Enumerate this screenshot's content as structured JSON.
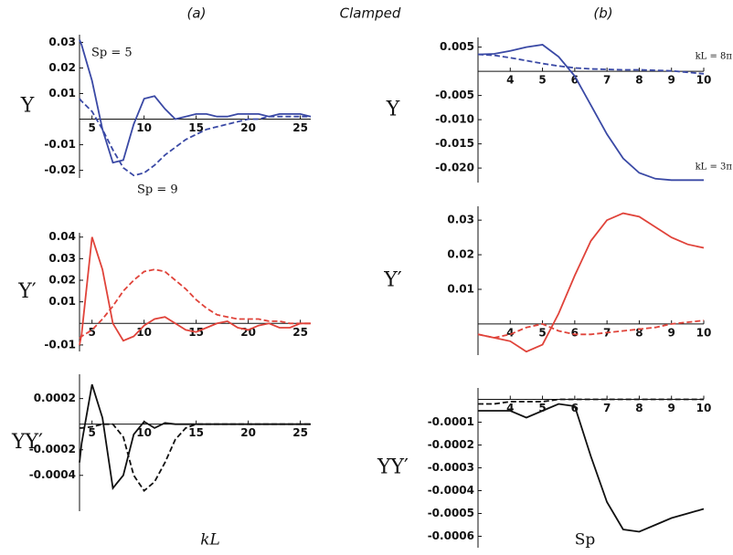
{
  "header": {
    "label_a": "(a)",
    "title": "Clamped",
    "label_b": "(b)"
  },
  "chart_data": [
    {
      "type": "line",
      "y_label": "Υ",
      "annotations": [
        "Sp = 5",
        "Sp = 9"
      ],
      "x": [
        3.8,
        4,
        5,
        6,
        7,
        8,
        9,
        10,
        11,
        12,
        13,
        14,
        15,
        16,
        17,
        18,
        19,
        20,
        21,
        22,
        23,
        24,
        25,
        26
      ],
      "xlim": [
        3.8,
        26
      ],
      "ylim": [
        -0.023,
        0.033
      ],
      "xticks": [
        5,
        10,
        15,
        20,
        25
      ],
      "yticks": [
        0.03,
        0.02,
        0.01,
        -0.01,
        -0.02
      ],
      "series": [
        {
          "color": "#3a49a5",
          "style": "solid",
          "values": [
            0.031,
            0.029,
            0.015,
            -0.004,
            -0.017,
            -0.016,
            -0.002,
            0.008,
            0.009,
            0.004,
            0,
            0.001,
            0.002,
            0.002,
            0.001,
            0.001,
            0.002,
            0.002,
            0.002,
            0.001,
            0.002,
            0.002,
            0.002,
            0.001
          ]
        },
        {
          "color": "#3a49a5",
          "style": "dashed",
          "values": [
            0.008,
            0.007,
            0.003,
            -0.004,
            -0.012,
            -0.019,
            -0.022,
            -0.021,
            -0.018,
            -0.014,
            -0.011,
            -0.008,
            -0.006,
            -0.004,
            -0.003,
            -0.002,
            -0.001,
            0,
            0,
            0.001,
            0.001,
            0.001,
            0.001,
            0.001
          ]
        }
      ]
    },
    {
      "type": "line",
      "y_label": "Υ′",
      "x": [
        3.8,
        4,
        5,
        6,
        7,
        8,
        9,
        10,
        11,
        12,
        13,
        14,
        15,
        16,
        17,
        18,
        19,
        20,
        21,
        22,
        23,
        24,
        25,
        26
      ],
      "xlim": [
        3.8,
        26
      ],
      "ylim": [
        -0.013,
        0.042
      ],
      "xticks": [
        5,
        10,
        15,
        20,
        25
      ],
      "yticks": [
        0.04,
        0.03,
        0.02,
        0.01,
        -0.01
      ],
      "series": [
        {
          "color": "#e0433a",
          "style": "solid",
          "values": [
            -0.01,
            -0.005,
            0.04,
            0.025,
            0,
            -0.008,
            -0.006,
            -0.001,
            0.002,
            0.003,
            0,
            -0.003,
            -0.004,
            -0.002,
            0,
            0.001,
            -0.002,
            -0.003,
            -0.001,
            0,
            -0.002,
            -0.002,
            0,
            0
          ]
        },
        {
          "color": "#e0433a",
          "style": "dashed",
          "values": [
            -0.007,
            -0.006,
            -0.003,
            0.002,
            0.008,
            0.015,
            0.02,
            0.024,
            0.025,
            0.024,
            0.02,
            0.016,
            0.011,
            0.007,
            0.004,
            0.003,
            0.002,
            0.002,
            0.002,
            0.001,
            0.001,
            0,
            0,
            0
          ]
        }
      ]
    },
    {
      "type": "line",
      "y_label": "ΥΥ′",
      "x_label": "kL",
      "x": [
        3.8,
        4,
        5,
        6,
        7,
        8,
        9,
        10,
        11,
        12,
        13,
        14,
        15,
        16,
        17,
        18,
        19,
        20,
        21,
        22,
        23,
        24,
        25,
        26
      ],
      "xlim": [
        3.8,
        26
      ],
      "ylim": [
        -0.00068,
        0.00039
      ],
      "xticks": [
        5,
        10,
        15,
        20,
        25
      ],
      "yticks": [
        0.0002,
        -0.0002,
        -0.0004
      ],
      "series": [
        {
          "color": "#111111",
          "style": "solid",
          "values": [
            -0.0003,
            -0.00015,
            0.00031,
            5e-05,
            -0.0005,
            -0.0004,
            -8e-05,
            2e-05,
            -3e-05,
            1e-05,
            0,
            0,
            0,
            0,
            0,
            0,
            0,
            0,
            0,
            0,
            0,
            0,
            0,
            0
          ]
        },
        {
          "color": "#111111",
          "style": "dashed",
          "values": [
            -3e-05,
            -3e-05,
            -2e-05,
            0,
            0,
            -0.0001,
            -0.0004,
            -0.00052,
            -0.00045,
            -0.0003,
            -0.00012,
            -3e-05,
            0,
            0,
            0,
            0,
            0,
            0,
            0,
            0,
            0,
            0,
            0,
            0
          ]
        }
      ]
    },
    {
      "type": "line",
      "y_label": "Υ",
      "annotations": [
        "kL = 8π",
        "kL = 3π"
      ],
      "x": [
        3,
        3.5,
        4,
        4.5,
        5,
        5.5,
        6,
        6.5,
        7,
        7.5,
        8,
        8.5,
        9,
        9.5,
        10
      ],
      "xlim": [
        3,
        10
      ],
      "ylim": [
        -0.023,
        0.007
      ],
      "xticks": [
        4,
        5,
        6,
        7,
        8,
        9,
        10
      ],
      "yticks": [
        0.005,
        -0.005,
        {
          "value": -0.01,
          "label": "-0.010"
        },
        {
          "value": -0.015,
          "label": "-0.015"
        },
        {
          "value": -0.02,
          "label": "-0.020"
        }
      ],
      "series": [
        {
          "color": "#3a49a5",
          "style": "solid",
          "values": [
            0.0035,
            0.0036,
            0.0042,
            0.005,
            0.0055,
            0.003,
            -0.001,
            -0.007,
            -0.013,
            -0.018,
            -0.021,
            -0.0222,
            -0.0225,
            -0.0225,
            -0.0225
          ]
        },
        {
          "color": "#3a49a5",
          "style": "dashed",
          "values": [
            0.0035,
            0.0033,
            0.0028,
            0.0022,
            0.0016,
            0.0011,
            0.0007,
            0.0005,
            0.0004,
            0.0003,
            0.0003,
            0.0002,
            0.0001,
            -0.0002,
            -0.0005
          ]
        }
      ]
    },
    {
      "type": "line",
      "y_label": "Υ′",
      "x": [
        3,
        3.5,
        4,
        4.5,
        5,
        5.5,
        6,
        6.5,
        7,
        7.5,
        8,
        8.5,
        9,
        9.5,
        10
      ],
      "xlim": [
        3,
        10
      ],
      "ylim": [
        -0.009,
        0.034
      ],
      "xticks": [
        4,
        5,
        6,
        7,
        8,
        9,
        10
      ],
      "yticks": [
        0.03,
        0.02,
        0.01
      ],
      "series": [
        {
          "color": "#e0433a",
          "style": "solid",
          "values": [
            -0.003,
            -0.004,
            -0.005,
            -0.008,
            -0.006,
            0.003,
            0.014,
            0.024,
            0.03,
            0.032,
            0.031,
            0.028,
            0.025,
            0.023,
            0.022
          ]
        },
        {
          "color": "#e0433a",
          "style": "dashed",
          "values": [
            -0.003,
            -0.004,
            -0.003,
            -0.001,
            0,
            -0.002,
            -0.003,
            -0.003,
            -0.0025,
            -0.002,
            -0.0015,
            -0.001,
            0,
            0.0005,
            0.001
          ]
        }
      ]
    },
    {
      "type": "line",
      "y_label": "ΥΥ′",
      "x_label": "Sp",
      "x": [
        3,
        3.5,
        4,
        4.5,
        5,
        5.5,
        6,
        6.5,
        7,
        7.5,
        8,
        8.5,
        9,
        9.5,
        10
      ],
      "xlim": [
        3,
        10
      ],
      "ylim": [
        -0.00065,
        5e-05
      ],
      "xticks": [
        4,
        5,
        6,
        7,
        8,
        9,
        10
      ],
      "yticks": [
        -0.0001,
        -0.0002,
        -0.0003,
        -0.0004,
        -0.0005,
        -0.0006
      ],
      "series": [
        {
          "color": "#111111",
          "style": "solid",
          "values": [
            -5e-05,
            -5e-05,
            -5e-05,
            -8e-05,
            -5e-05,
            -2e-05,
            -3e-05,
            -0.00025,
            -0.00045,
            -0.00057,
            -0.00058,
            -0.00055,
            -0.00052,
            -0.0005,
            -0.00048
          ]
        },
        {
          "color": "#111111",
          "style": "dashed",
          "values": [
            -2e-05,
            -2e-05,
            -1e-05,
            -1e-05,
            -1e-05,
            0,
            0,
            0,
            0,
            0,
            0,
            0,
            0,
            0,
            0
          ]
        }
      ]
    }
  ]
}
